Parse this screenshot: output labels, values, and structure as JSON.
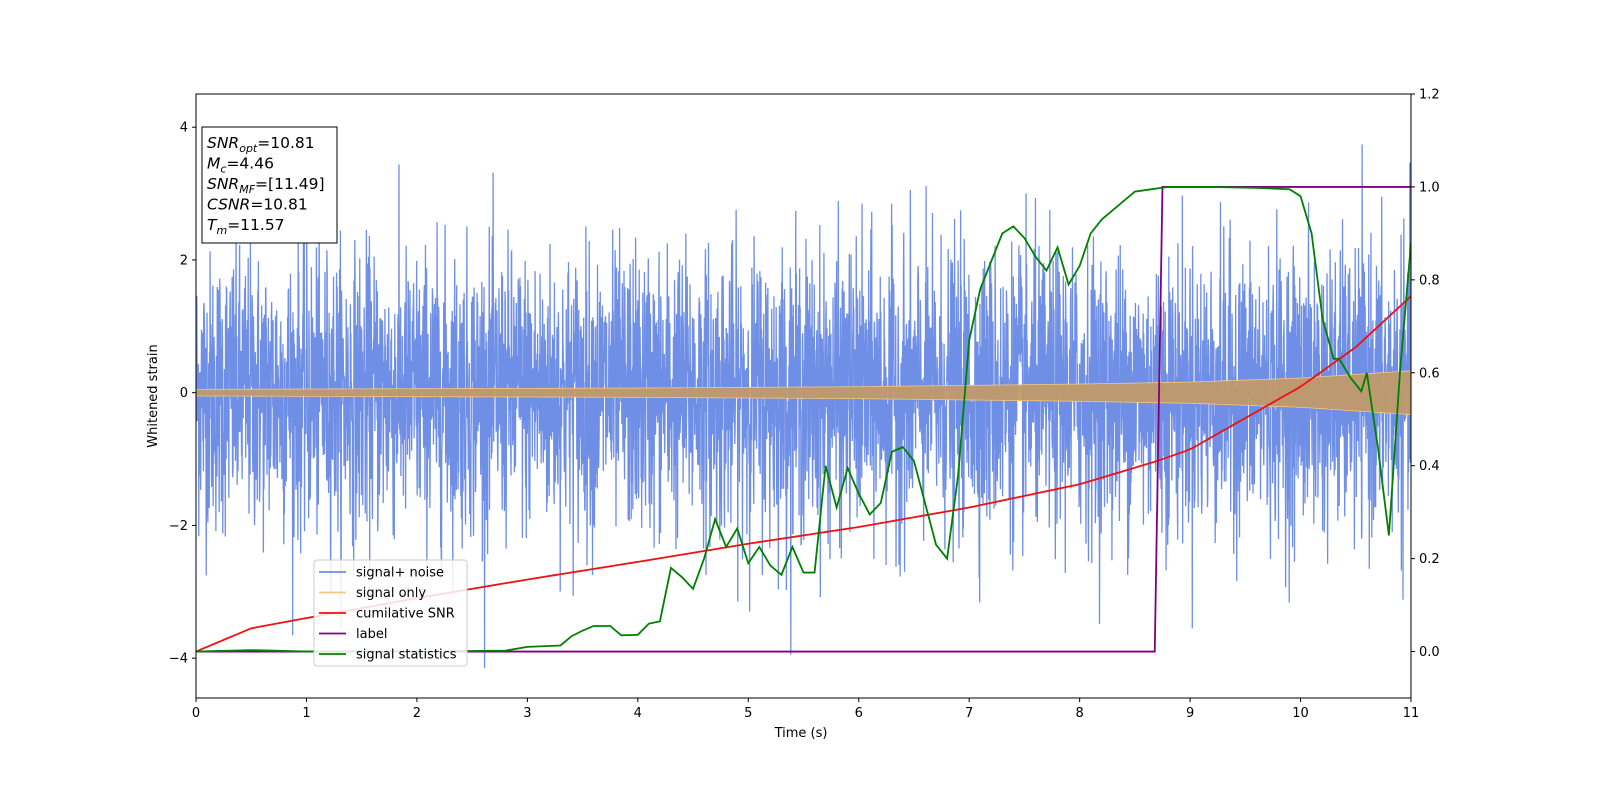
{
  "chart_data": {
    "type": "line",
    "xlabel": "Time (s)",
    "ylabel": "Whitened strain",
    "xlim": [
      0,
      11
    ],
    "ylim": [
      -4.6,
      4.5
    ],
    "y2lim": [
      -0.1,
      1.2
    ],
    "x_ticks": [
      0,
      1,
      2,
      3,
      4,
      5,
      6,
      7,
      8,
      9,
      10,
      11
    ],
    "y_ticks": [
      -4,
      -2,
      0,
      2,
      4
    ],
    "y2_ticks": [
      "0.0",
      "0.2",
      "0.4",
      "0.6",
      "0.8",
      "1.0",
      "1.2"
    ],
    "grid": false,
    "legend_position": "lower-left",
    "info_box": [
      {
        "sym": "SNR",
        "sub": "opt",
        "value": "=10.81"
      },
      {
        "sym": "M",
        "sub": "c",
        "value": "=4.46"
      },
      {
        "sym": "SNR",
        "sub": "MF",
        "value": "=[11.49]"
      },
      {
        "sym": "CSNR",
        "sub": "",
        "value": "=10.81"
      },
      {
        "sym": "T",
        "sub": "m",
        "value": "=11.57"
      }
    ],
    "series": [
      {
        "name": "signal+ noise",
        "axis": "left",
        "color": "#6f8fe6",
        "description_values": {
          "envelope_upper_typical": 2.5,
          "envelope_lower_typical": -2.5,
          "max": 4.1,
          "min": -4.15
        }
      },
      {
        "name": "signal only",
        "axis": "left",
        "color": "#f5c77e",
        "amplitude_at": {
          "x": [
            0,
            2,
            4,
            6,
            8,
            9,
            10,
            11
          ],
          "y": [
            0.05,
            0.06,
            0.07,
            0.09,
            0.13,
            0.16,
            0.22,
            0.33
          ]
        }
      },
      {
        "name": "cumilative SNR",
        "axis": "right",
        "color": "#ee1111",
        "x": [
          0,
          0.5,
          1,
          2,
          3,
          4,
          5,
          6,
          7,
          8,
          8.7,
          9,
          10,
          10.5,
          11
        ],
        "y": [
          0.0,
          0.05,
          0.072,
          0.115,
          0.155,
          0.193,
          0.232,
          0.268,
          0.31,
          0.36,
          0.41,
          0.435,
          0.57,
          0.655,
          0.765
        ]
      },
      {
        "name": "label",
        "axis": "right",
        "color": "#800080",
        "x": [
          0,
          8.68,
          8.75,
          11
        ],
        "y": [
          0.0,
          0.0,
          1.0,
          1.0
        ]
      },
      {
        "name": "signal statistics",
        "axis": "right",
        "color": "#008000",
        "x": [
          0,
          0.5,
          1,
          2,
          2.8,
          3,
          3.3,
          3.4,
          3.5,
          3.6,
          3.75,
          3.85,
          4,
          4.1,
          4.2,
          4.3,
          4.4,
          4.5,
          4.6,
          4.7,
          4.8,
          4.9,
          5.0,
          5.1,
          5.2,
          5.3,
          5.4,
          5.5,
          5.6,
          5.7,
          5.8,
          5.9,
          6.0,
          6.1,
          6.2,
          6.3,
          6.4,
          6.5,
          6.6,
          6.7,
          6.8,
          6.9,
          7.0,
          7.1,
          7.2,
          7.3,
          7.4,
          7.5,
          7.6,
          7.7,
          7.8,
          7.9,
          8.0,
          8.1,
          8.2,
          8.3,
          8.5,
          8.8,
          9.2,
          9.6,
          9.9,
          10.0,
          10.1,
          10.2,
          10.3,
          10.35,
          10.45,
          10.55,
          10.6,
          10.7,
          10.8,
          10.9,
          11.0
        ],
        "y": [
          0.0,
          0.003,
          0.0,
          0.0,
          0.002,
          0.01,
          0.013,
          0.033,
          0.045,
          0.055,
          0.055,
          0.035,
          0.036,
          0.06,
          0.065,
          0.18,
          0.16,
          0.135,
          0.2,
          0.285,
          0.225,
          0.265,
          0.19,
          0.225,
          0.185,
          0.165,
          0.225,
          0.17,
          0.17,
          0.4,
          0.31,
          0.395,
          0.34,
          0.295,
          0.32,
          0.43,
          0.44,
          0.41,
          0.32,
          0.23,
          0.2,
          0.38,
          0.67,
          0.78,
          0.84,
          0.9,
          0.915,
          0.89,
          0.85,
          0.82,
          0.87,
          0.79,
          0.83,
          0.9,
          0.93,
          0.95,
          0.99,
          1.0,
          1.0,
          0.998,
          0.995,
          0.98,
          0.9,
          0.715,
          0.63,
          0.63,
          0.59,
          0.56,
          0.6,
          0.44,
          0.25,
          0.6,
          0.88
        ]
      }
    ]
  }
}
